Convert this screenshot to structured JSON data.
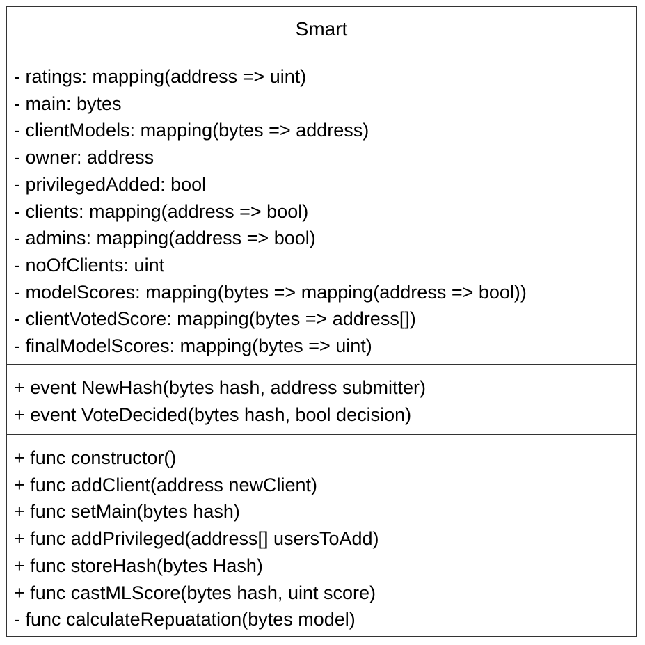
{
  "class_name": "Smart",
  "attributes": [
    "- ratings: mapping(address => uint)",
    "- main: bytes",
    "- clientModels: mapping(bytes => address)",
    "- owner: address",
    "- privilegedAdded: bool",
    "- clients: mapping(address => bool)",
    "- admins: mapping(address => bool)",
    "- noOfClients: uint",
    "- modelScores: mapping(bytes => mapping(address => bool))",
    "- clientVotedScore: mapping(bytes => address[])",
    "- finalModelScores: mapping(bytes => uint)"
  ],
  "events": [
    "+ event NewHash(bytes hash, address submitter)",
    "+ event VoteDecided(bytes hash, bool decision)"
  ],
  "operations": [
    "+ func constructor()",
    "+ func addClient(address newClient)",
    "+ func setMain(bytes hash)",
    "+ func addPrivileged(address[] usersToAdd)",
    "+ func storeHash(bytes Hash)",
    "+ func castMLScore(bytes hash, uint score)",
    "- func calculateRepuatation(bytes model)"
  ],
  "colors": {
    "border": "#333333",
    "text": "#000000",
    "background": "#ffffff"
  }
}
